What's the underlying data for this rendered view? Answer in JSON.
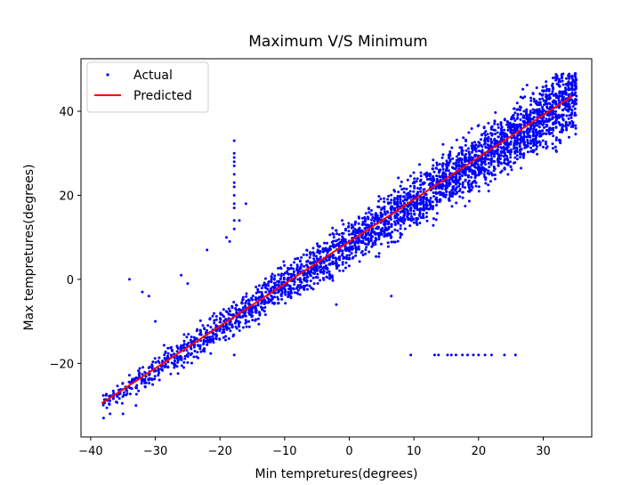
{
  "chart_data": {
    "type": "scatter",
    "title": "Maximum V/S Minimum",
    "xlabel": "Min tempretures(degrees)",
    "ylabel": "Max tempretures(degrees)",
    "xlim": [
      -41.5,
      37.5
    ],
    "ylim": [
      -37.5,
      52.5
    ],
    "xticks": [
      -40,
      -30,
      -20,
      -10,
      0,
      10,
      20,
      30
    ],
    "yticks": [
      -20,
      0,
      20,
      40
    ],
    "xtick_labels": [
      "−40",
      "−30",
      "−20",
      "−10",
      "0",
      "10",
      "20",
      "30"
    ],
    "ytick_labels": [
      "−20",
      "0",
      "20",
      "40"
    ],
    "grid": false,
    "legend_position": "top-left",
    "series": [
      {
        "name": "Actual",
        "kind": "scatter",
        "color": "#0000ff",
        "band": {
          "x_range": [
            -38,
            35
          ],
          "center_line": {
            "slope": 1.0,
            "intercept": 8.5
          },
          "half_width_at_low_x": 3,
          "half_width_at_high_x": 10,
          "upper_cap": 49
        },
        "points": [
          {
            "x": -17.8,
            "y": 33
          },
          {
            "x": -17.8,
            "y": 30
          },
          {
            "x": -17.8,
            "y": 29
          },
          {
            "x": -17.8,
            "y": 28
          },
          {
            "x": -17.8,
            "y": 27
          },
          {
            "x": -17.8,
            "y": 25
          },
          {
            "x": -17.8,
            "y": 23
          },
          {
            "x": -17.8,
            "y": 22
          },
          {
            "x": -17.8,
            "y": 20
          },
          {
            "x": -17.8,
            "y": 18
          },
          {
            "x": -17.8,
            "y": 17
          },
          {
            "x": -17.8,
            "y": 14
          },
          {
            "x": -17.8,
            "y": 12
          },
          {
            "x": -17.8,
            "y": -18
          },
          {
            "x": -34,
            "y": 0
          },
          {
            "x": -31,
            "y": -4
          },
          {
            "x": -32,
            "y": -3
          },
          {
            "x": -30,
            "y": -10
          },
          {
            "x": -26,
            "y": 1
          },
          {
            "x": -25,
            "y": -1
          },
          {
            "x": -22,
            "y": 7
          },
          {
            "x": -19,
            "y": 10
          },
          {
            "x": -18.5,
            "y": 9
          },
          {
            "x": -16,
            "y": 18
          },
          {
            "x": -17,
            "y": 14
          },
          {
            "x": -2,
            "y": -6
          },
          {
            "x": 6.5,
            "y": -4
          },
          {
            "x": 9.5,
            "y": -18
          },
          {
            "x": 13.2,
            "y": -18
          },
          {
            "x": 13.8,
            "y": -18
          },
          {
            "x": 15.2,
            "y": -18
          },
          {
            "x": 15.8,
            "y": -18
          },
          {
            "x": 16.5,
            "y": -18
          },
          {
            "x": 17.5,
            "y": -18
          },
          {
            "x": 18.3,
            "y": -18
          },
          {
            "x": 19.2,
            "y": -18
          },
          {
            "x": 20,
            "y": -18
          },
          {
            "x": 21,
            "y": -18
          },
          {
            "x": 22,
            "y": -18
          },
          {
            "x": 24,
            "y": -18
          },
          {
            "x": 25.7,
            "y": -18
          },
          {
            "x": -38,
            "y": -33
          },
          {
            "x": -37,
            "y": -32
          },
          {
            "x": -35,
            "y": -32
          },
          {
            "x": -33,
            "y": -30
          }
        ]
      },
      {
        "name": "Predicted",
        "kind": "line",
        "color": "#ff0000",
        "x": [
          -38.3,
          34.4
        ],
        "y": [
          -29.5,
          43.5
        ]
      }
    ]
  }
}
